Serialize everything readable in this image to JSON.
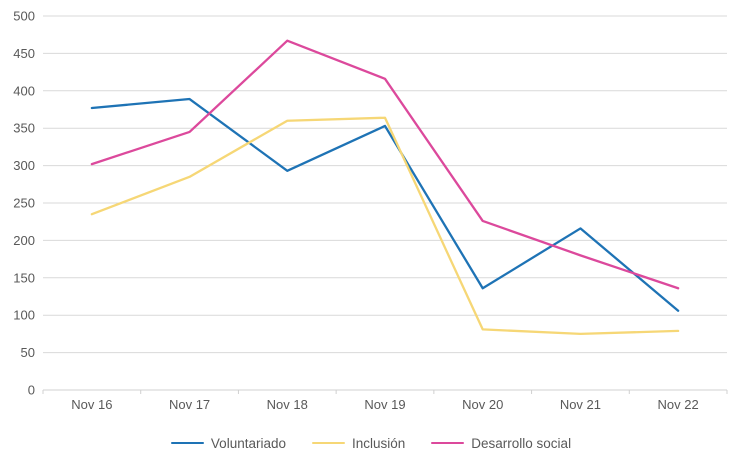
{
  "chart_data": {
    "type": "line",
    "title": "",
    "xlabel": "",
    "ylabel": "",
    "categories": [
      "Nov 16",
      "Nov 17",
      "Nov 18",
      "Nov 19",
      "Nov 20",
      "Nov 21",
      "Nov 22"
    ],
    "series": [
      {
        "name": "Voluntariado",
        "color": "#1E73B5",
        "values": [
          377,
          389,
          293,
          353,
          136,
          216,
          106
        ]
      },
      {
        "name": "Inclusión",
        "color": "#F6D776",
        "values": [
          235,
          285,
          360,
          364,
          81,
          75,
          79
        ]
      },
      {
        "name": "Desarrollo social",
        "color": "#DC499C",
        "values": [
          302,
          345,
          467,
          416,
          226,
          180,
          136
        ]
      }
    ],
    "ylim": [
      0,
      500
    ],
    "y_tick_step": 50,
    "y_tick_labels": [
      "0",
      "50",
      "100",
      "150",
      "200",
      "250",
      "300",
      "350",
      "400",
      "450",
      "500"
    ],
    "grid": true,
    "legend_position": "bottom"
  },
  "colors": {
    "background": "#FFFFFF",
    "gridline": "#D9D9D9",
    "axis_line": "#D0D0D0",
    "tick_mark": "#D0D0D0",
    "text": "#595959"
  }
}
